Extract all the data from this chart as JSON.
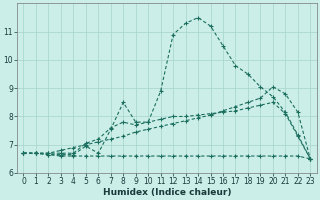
{
  "xlabel": "Humidex (Indice chaleur)",
  "bg_color": "#cceee8",
  "grid_color": "#aad8d0",
  "line_color": "#1a6e5e",
  "xlim": [
    -0.5,
    23.5
  ],
  "ylim": [
    6,
    12
  ],
  "yticks": [
    6,
    7,
    8,
    9,
    10,
    11
  ],
  "xticks": [
    0,
    1,
    2,
    3,
    4,
    5,
    6,
    7,
    8,
    9,
    10,
    11,
    12,
    13,
    14,
    15,
    16,
    17,
    18,
    19,
    20,
    21,
    22,
    23
  ],
  "series": [
    {
      "x": [
        0,
        1,
        2,
        3,
        4,
        5,
        6,
        7,
        8,
        9,
        10,
        11,
        12,
        13,
        14,
        15,
        16,
        17,
        18,
        19,
        20,
        21,
        22,
        23
      ],
      "y": [
        6.7,
        6.7,
        6.65,
        6.6,
        6.6,
        6.6,
        6.6,
        6.6,
        6.6,
        6.6,
        6.6,
        6.6,
        6.6,
        6.6,
        6.6,
        6.6,
        6.6,
        6.6,
        6.6,
        6.6,
        6.6,
        6.6,
        6.6,
        6.5
      ],
      "marker": true,
      "linestyle": "--"
    },
    {
      "x": [
        0,
        1,
        2,
        3,
        4,
        5,
        6,
        7,
        8,
        9,
        10,
        11,
        12,
        13,
        14,
        15,
        16,
        17,
        18,
        19,
        20,
        21,
        22,
        23
      ],
      "y": [
        6.7,
        6.7,
        6.7,
        6.8,
        6.9,
        7.0,
        7.1,
        7.2,
        7.3,
        7.45,
        7.55,
        7.65,
        7.75,
        7.85,
        7.95,
        8.05,
        8.2,
        8.35,
        8.5,
        8.65,
        9.05,
        8.8,
        8.15,
        6.5
      ],
      "marker": true,
      "linestyle": "--"
    },
    {
      "x": [
        0,
        1,
        2,
        3,
        4,
        5,
        6,
        7,
        8,
        9,
        10,
        11,
        12,
        13,
        14,
        15,
        16,
        17,
        18,
        19,
        20,
        21,
        22,
        23
      ],
      "y": [
        6.7,
        6.7,
        6.7,
        6.7,
        6.7,
        7.05,
        7.2,
        7.6,
        7.8,
        7.7,
        7.8,
        7.9,
        8.0,
        8.0,
        8.05,
        8.1,
        8.15,
        8.2,
        8.3,
        8.4,
        8.5,
        8.1,
        7.3,
        6.5
      ],
      "marker": true,
      "linestyle": "--"
    },
    {
      "x": [
        0,
        1,
        2,
        3,
        4,
        5,
        6,
        7,
        8,
        9,
        10,
        11,
        12,
        13,
        14,
        15,
        16,
        17,
        18,
        19,
        20,
        21,
        22,
        23
      ],
      "y": [
        6.7,
        6.7,
        6.65,
        6.65,
        6.65,
        6.95,
        6.7,
        7.55,
        8.5,
        7.8,
        7.8,
        8.9,
        10.9,
        11.3,
        11.5,
        11.2,
        10.5,
        9.8,
        9.5,
        9.05,
        8.7,
        8.15,
        7.35,
        6.5
      ],
      "marker": true,
      "linestyle": "--"
    }
  ]
}
